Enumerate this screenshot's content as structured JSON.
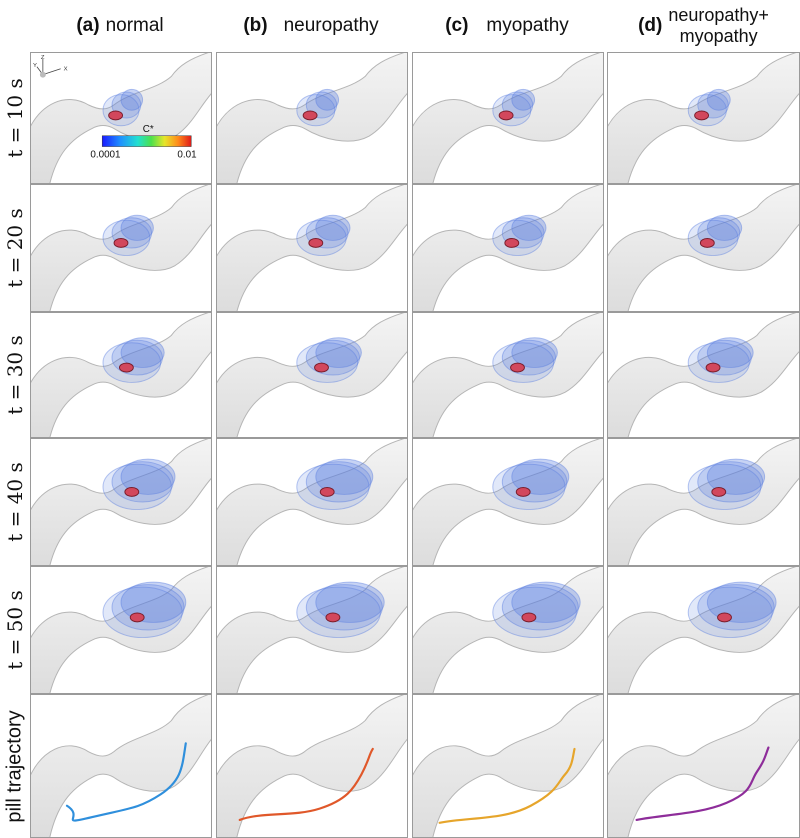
{
  "columns": [
    {
      "letter": "(a)",
      "label": "normal"
    },
    {
      "letter": "(b)",
      "label": "neuropathy"
    },
    {
      "letter": "(c)",
      "label": "myopathy"
    },
    {
      "letter": "(d)",
      "label": "neuropathy+\nmyopathy"
    }
  ],
  "rows": [
    {
      "label": "t = 10 s"
    },
    {
      "label": "t = 20 s"
    },
    {
      "label": "t = 30 s"
    },
    {
      "label": "t = 40 s"
    },
    {
      "label": "t = 50 s"
    },
    {
      "label": "pill trajectory"
    }
  ],
  "colorbar": {
    "title": "C*",
    "min": "0.0001",
    "max": "0.01"
  },
  "axes_triad": {
    "x": "X",
    "y": "Y",
    "z": "Z"
  },
  "trajectory_colors": [
    "#2f8fdc",
    "#e0582a",
    "#e6a52b",
    "#8e2d9a"
  ],
  "colors": {
    "organ_fill": "#e9e9e9",
    "organ_stroke": "#b5b5b5",
    "plume": "#5b7fe0",
    "pill": "#d2475c"
  }
}
